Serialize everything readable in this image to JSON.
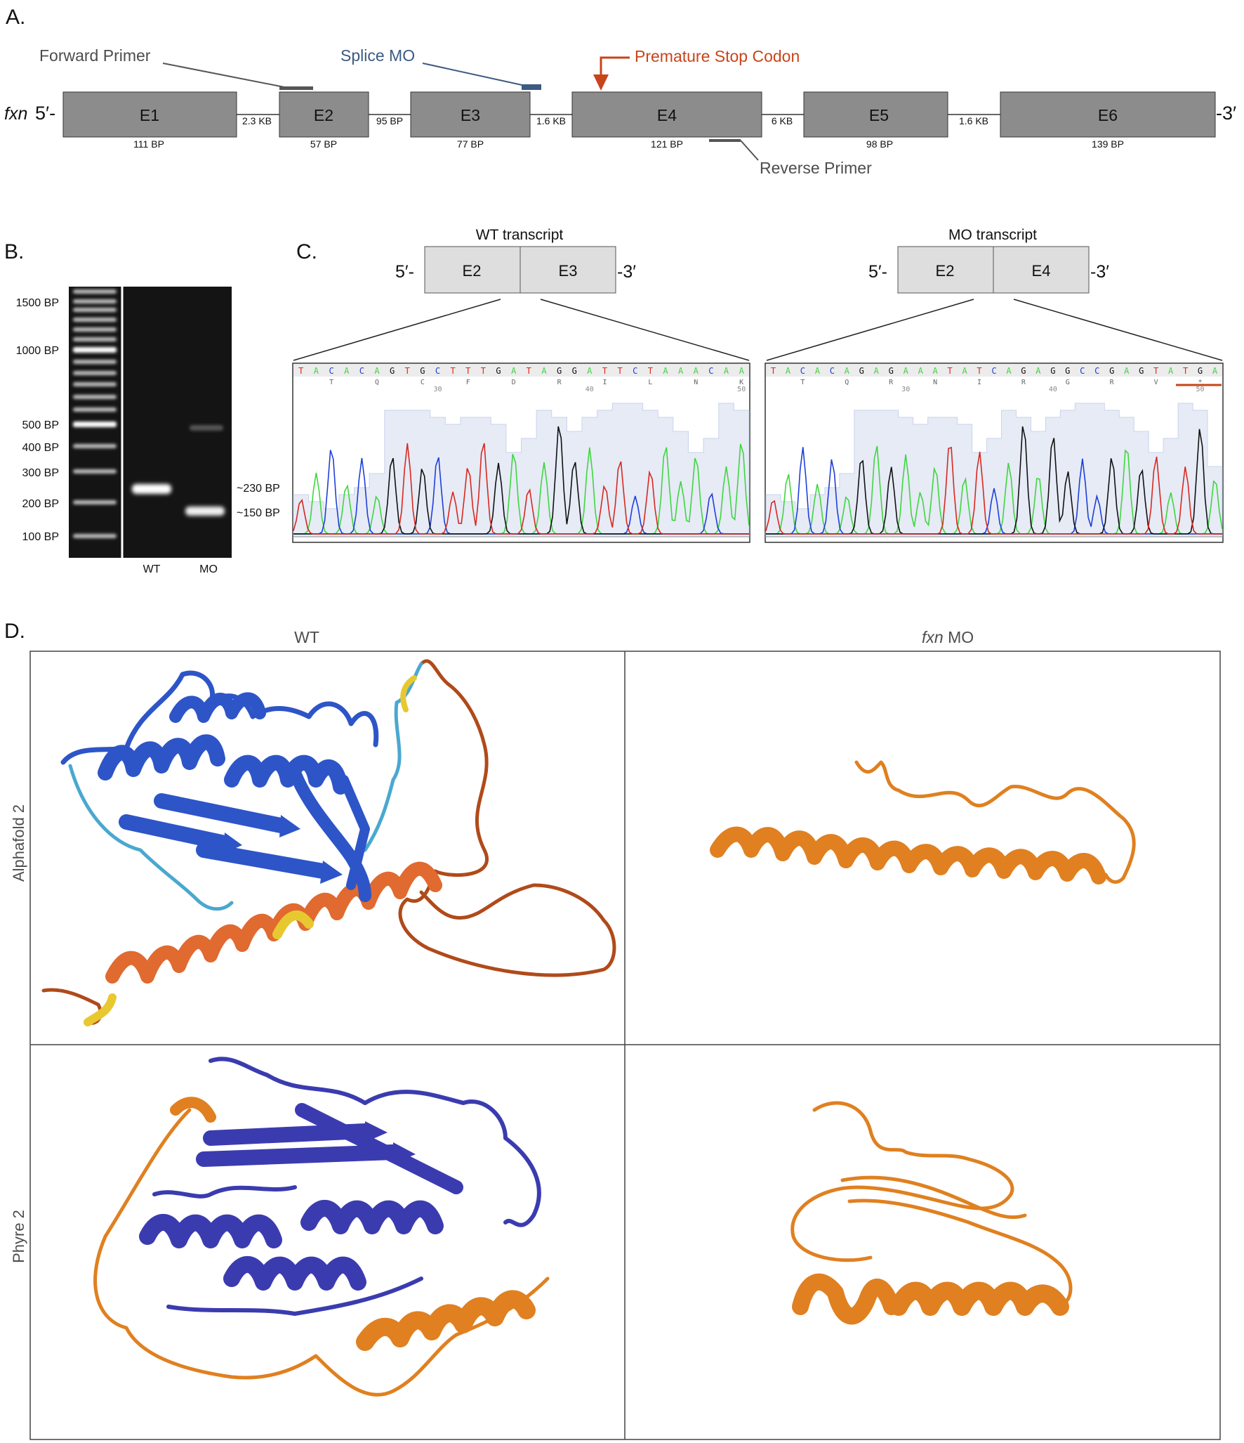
{
  "panels": {
    "a": "A.",
    "b": "B.",
    "c": "C.",
    "d": "D."
  },
  "colors": {
    "exon": "#8c8c8c",
    "exon_light": "#dedede",
    "mo_blue": "#3c5a82",
    "stop_red": "#c8441a",
    "primer_gray": "#555555",
    "trace_A": "#3fd63f",
    "trace_C": "#1f3fd8",
    "trace_G": "#111111",
    "trace_T": "#d8281f",
    "quality": "#e6ebf6",
    "protein_blue_af": "#2d55c8",
    "protein_blue_phyre": "#3b3bb0",
    "protein_orange": "#e08020",
    "protein_yellow": "#e8c830",
    "protein_cyan": "#4aa8d0"
  },
  "panel_a": {
    "gene_name": "fxn",
    "five_prime": "5′-",
    "three_prime": "-3′",
    "exons": [
      {
        "name": "E1",
        "size": "111 BP"
      },
      {
        "name": "E2",
        "size": "57 BP"
      },
      {
        "name": "E3",
        "size": "77 BP"
      },
      {
        "name": "E4",
        "size": "121 BP"
      },
      {
        "name": "E5",
        "size": "98 BP"
      },
      {
        "name": "E6",
        "size": "139 BP"
      }
    ],
    "introns": [
      "2.3 KB",
      "95 BP",
      "1.6 KB",
      "6 KB",
      "1.6 KB"
    ],
    "forward_primer": "Forward Primer",
    "splice_mo": "Splice MO",
    "premature_stop": "Premature Stop Codon",
    "reverse_primer": "Reverse Primer"
  },
  "panel_b": {
    "ladder": [
      "1500 BP",
      "1000 BP",
      "500 BP",
      "400 BP",
      "300 BP",
      "200 BP",
      "100 BP"
    ],
    "band_labels": [
      "~230 BP",
      "~150 BP"
    ],
    "lanes": [
      "WT",
      "MO"
    ]
  },
  "panel_c": {
    "wt": {
      "title": "WT transcript",
      "five": "5′-",
      "three": "-3′",
      "exons": [
        "E2",
        "E3"
      ],
      "bases": [
        "T",
        "A",
        "C",
        "A",
        "C",
        "A",
        "G",
        "T",
        "G",
        "C",
        "T",
        "T",
        "T",
        "G",
        "A",
        "T",
        "A",
        "G",
        "G",
        "A",
        "T",
        "T",
        "C",
        "T",
        "A",
        "A",
        "A",
        "C",
        "A",
        "A"
      ],
      "amino_acids": [
        "T",
        "Q",
        "C",
        "F",
        "D",
        "R",
        "I",
        "L",
        "N",
        "K"
      ],
      "ticks": [
        "30",
        "40",
        "50"
      ]
    },
    "mo": {
      "title": "MO transcript",
      "five": "5′-",
      "three": "-3′",
      "exons": [
        "E2",
        "E4"
      ],
      "bases": [
        "T",
        "A",
        "C",
        "A",
        "C",
        "A",
        "G",
        "A",
        "G",
        "A",
        "A",
        "A",
        "T",
        "A",
        "T",
        "C",
        "A",
        "G",
        "A",
        "G",
        "G",
        "C",
        "C",
        "G",
        "A",
        "G",
        "T",
        "A",
        "T",
        "G",
        "A"
      ],
      "amino_acids": [
        "T",
        "Q",
        "R",
        "N",
        "I",
        "R",
        "G",
        "R",
        "V",
        "*"
      ],
      "ticks": [
        "30",
        "40",
        "50"
      ]
    }
  },
  "panel_d": {
    "columns": [
      "WT",
      "fxn",
      " MO"
    ],
    "rows": [
      "Alphafold 2",
      "Phyre 2"
    ]
  }
}
